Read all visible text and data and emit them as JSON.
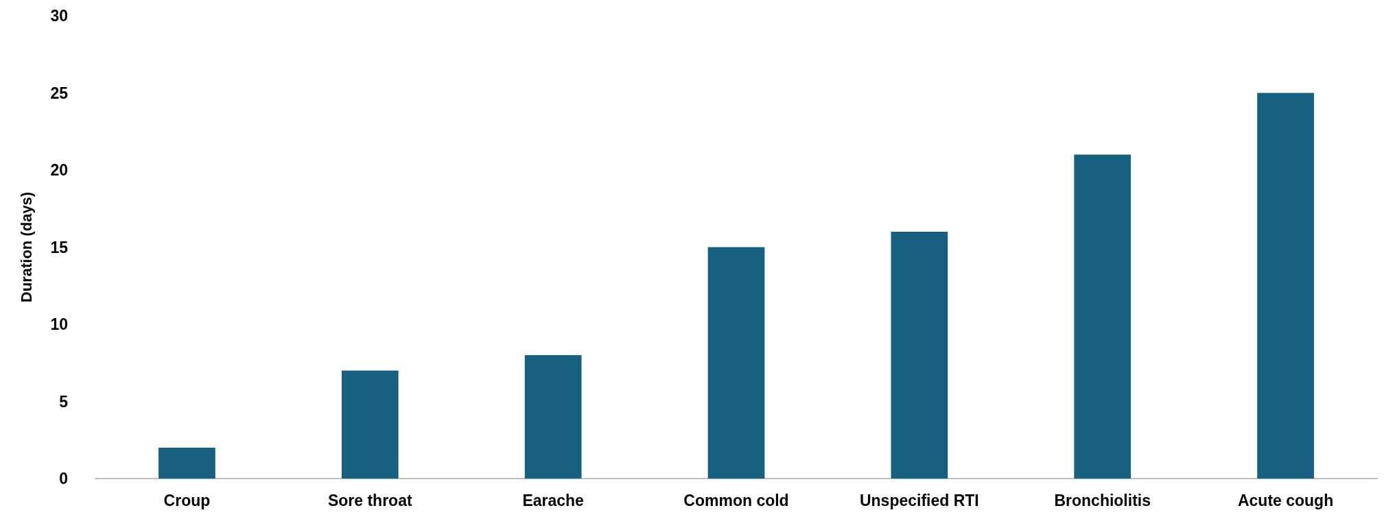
{
  "chart_data": {
    "type": "bar",
    "ylabel": "Duration (days)",
    "categories": [
      "Croup",
      "Sore throat",
      "Earache",
      "Common cold",
      "Unspecified RTI",
      "Bronchiolitis",
      "Acute cough"
    ],
    "values": [
      2,
      7,
      8,
      15,
      16,
      21,
      25
    ],
    "color": "#17607f",
    "ylim": [
      0,
      30
    ],
    "yticks": [
      0,
      5,
      10,
      15,
      20,
      25,
      30
    ],
    "grid": false
  }
}
